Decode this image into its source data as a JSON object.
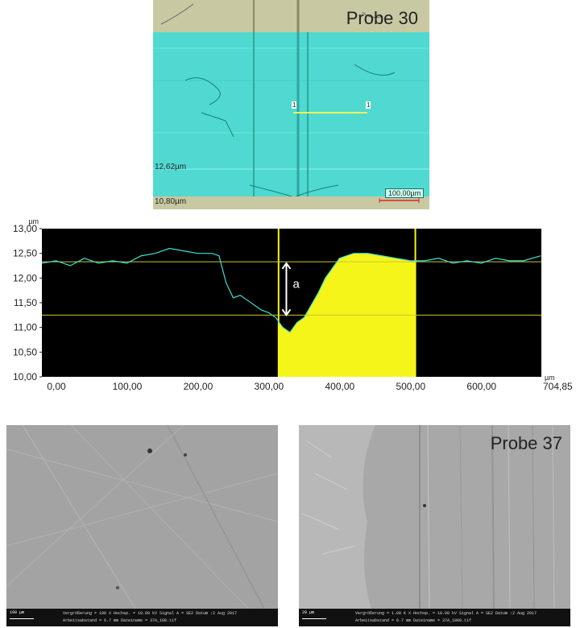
{
  "microscope": {
    "title": "Probe 30",
    "upper_height": "12,62µm",
    "lower_height": "10,80µm",
    "scale_bar": "100,00µm",
    "profile_marker_start": "1",
    "profile_marker_end": "1"
  },
  "chart_data": {
    "type": "line",
    "y_unit": "µm",
    "x_unit": "µm",
    "ylim": [
      10.0,
      13.0
    ],
    "xlim": [
      0,
      704.85
    ],
    "yticks": [
      "13,00",
      "12,50",
      "12,00",
      "11,50",
      "11,00",
      "10,50",
      "10,00"
    ],
    "xticks": [
      "0,00",
      "100,00",
      "200,00",
      "300,00",
      "400,00",
      "500,00",
      "600,00"
    ],
    "x_end_label": "704,85",
    "annotation": "a",
    "highlight_region": [
      334,
      527
    ],
    "reference_lines": [
      12.33,
      11.25
    ],
    "series": [
      {
        "color": "#3fe0d8",
        "x": [
          0,
          20,
          40,
          60,
          80,
          100,
          120,
          140,
          160,
          180,
          200,
          220,
          240,
          250,
          260,
          270,
          280,
          290,
          300,
          310,
          320,
          330,
          340,
          350,
          360,
          370,
          380,
          390,
          400,
          410,
          420,
          430,
          440,
          460,
          480,
          500,
          520,
          540,
          560,
          580,
          600,
          620,
          640,
          660,
          680,
          704
        ],
        "y": [
          12.3,
          12.35,
          12.25,
          12.4,
          12.3,
          12.35,
          12.3,
          12.45,
          12.5,
          12.6,
          12.55,
          12.5,
          12.5,
          12.45,
          11.9,
          11.6,
          11.65,
          11.55,
          11.45,
          11.35,
          11.3,
          11.2,
          11.0,
          10.9,
          11.1,
          11.2,
          11.45,
          11.7,
          12.0,
          12.2,
          12.4,
          12.45,
          12.5,
          12.5,
          12.45,
          12.4,
          12.35,
          12.35,
          12.4,
          12.3,
          12.35,
          12.3,
          12.4,
          12.35,
          12.35,
          12.45
        ]
      }
    ]
  },
  "sem_left": {
    "footer_scale": "100 µm",
    "footer_text_1": "Vergrößerung = 100 X   Hochsp. = 10.00 kV   Signal A = SE2   Datum :2 Aug 2017",
    "footer_text_2": "Arbeitsabstand = 6.7 mm   Dateiname = 37A_100.tif"
  },
  "sem_right": {
    "title": "Probe 37",
    "footer_scale": "20 µm",
    "footer_text_1": "Vergrößerung = 1.00 K X   Hochsp. = 10.00 kV   Signal A = SE2   Datum :2 Aug 2017",
    "footer_text_2": "Arbeitsabstand = 6.7 mm   Dateiname = 37A_1000.tif"
  }
}
